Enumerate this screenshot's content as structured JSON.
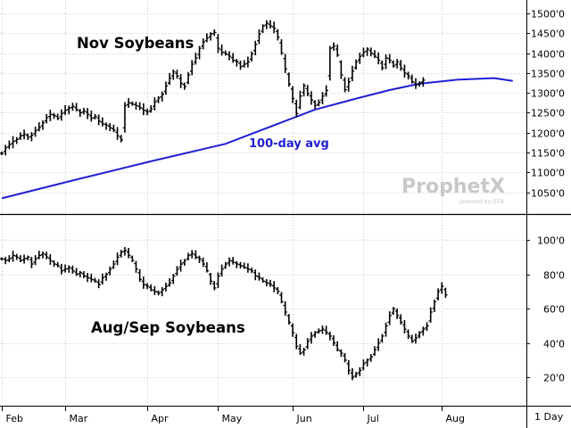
{
  "chart_data": [
    {
      "type": "ohlc",
      "title": "Nov Soybeans",
      "annotations": [
        "100-day avg"
      ],
      "watermark": {
        "main": "ProphetX",
        "sub": "powered by DTN"
      },
      "ylim": [
        1000,
        1520
      ],
      "y_ticks": [
        1050,
        1100,
        1150,
        1200,
        1250,
        1300,
        1350,
        1400,
        1450,
        1500
      ],
      "y_tick_labels": [
        "1050'0",
        "1100'0",
        "1150'0",
        "1200'0",
        "1250'0",
        "1300'0",
        "1350'0",
        "1400'0",
        "1450'0",
        "1500'0"
      ],
      "closes": [
        1148,
        1162,
        1170,
        1178,
        1183,
        1192,
        1196,
        1188,
        1194,
        1205,
        1213,
        1225,
        1238,
        1246,
        1243,
        1236,
        1248,
        1256,
        1262,
        1266,
        1258,
        1250,
        1255,
        1246,
        1236,
        1241,
        1229,
        1222,
        1219,
        1212,
        1206,
        1192,
        1182,
        1268,
        1275,
        1272,
        1268,
        1263,
        1256,
        1252,
        1260,
        1277,
        1287,
        1296,
        1318,
        1337,
        1353,
        1342,
        1324,
        1316,
        1345,
        1372,
        1388,
        1412,
        1428,
        1438,
        1448,
        1452,
        1412,
        1402,
        1398,
        1392,
        1382,
        1378,
        1366,
        1372,
        1378,
        1398,
        1422,
        1448,
        1468,
        1475,
        1468,
        1462,
        1440,
        1400,
        1360,
        1322,
        1286,
        1248,
        1292,
        1318,
        1298,
        1282,
        1268,
        1276,
        1292,
        1306,
        1412,
        1418,
        1395,
        1345,
        1308,
        1328,
        1355,
        1378,
        1392,
        1402,
        1410,
        1400,
        1392,
        1382,
        1363,
        1388,
        1382,
        1368,
        1378,
        1362,
        1350,
        1342,
        1328,
        1320,
        1325,
        1332
      ],
      "ma_series": {
        "name": "100-day avg",
        "color": "#1f1fd6",
        "points": [
          [
            0,
            1035
          ],
          [
            20,
            1082
          ],
          [
            40,
            1128
          ],
          [
            60,
            1172
          ],
          [
            72,
            1215
          ],
          [
            84,
            1258
          ],
          [
            96,
            1288
          ],
          [
            104,
            1307
          ],
          [
            112,
            1323
          ],
          [
            122,
            1333
          ],
          [
            132,
            1337
          ],
          [
            137,
            1330
          ]
        ]
      }
    },
    {
      "type": "ohlc",
      "title": "Aug/Sep Soybeans",
      "ylim": [
        5,
        112
      ],
      "y_ticks": [
        20,
        40,
        60,
        80,
        100
      ],
      "y_tick_labels": [
        "20'0",
        "40'0",
        "60'0",
        "80'0",
        "100'0"
      ],
      "closes": [
        89,
        88,
        89,
        91,
        90,
        88,
        89,
        90,
        86,
        89,
        91,
        92,
        90,
        88,
        86,
        85,
        82,
        83,
        84,
        82,
        80,
        81,
        79,
        78,
        77,
        76,
        74,
        78,
        80,
        83,
        86,
        90,
        93,
        94,
        91,
        88,
        83,
        77,
        74,
        73,
        71,
        70,
        69,
        71,
        73,
        75,
        79,
        83,
        86,
        88,
        91,
        92,
        90,
        89,
        86,
        82,
        76,
        72,
        79,
        83,
        86,
        88,
        87,
        86,
        85,
        84,
        83,
        82,
        79,
        78,
        76,
        75,
        74,
        72,
        70,
        64,
        58,
        52,
        46,
        38,
        34,
        36,
        41,
        44,
        46,
        47,
        48,
        46,
        44,
        40,
        36,
        34,
        30,
        24,
        20,
        22,
        24,
        28,
        30,
        32,
        36,
        40,
        44,
        50,
        56,
        60,
        56,
        52,
        48,
        44,
        41,
        43,
        46,
        48,
        50,
        58,
        64,
        70,
        73,
        68
      ],
      "session_windows": [
        [
          0,
          11
        ],
        [
          14,
          27
        ],
        [
          30,
          41
        ],
        [
          45,
          56
        ],
        [
          58,
          69
        ],
        [
          72,
          84
        ],
        [
          88,
          94
        ],
        [
          100,
          105
        ],
        [
          108,
          112
        ],
        [
          115,
          120
        ]
      ]
    }
  ],
  "x_axis": {
    "labels": [
      "Feb",
      "Mar",
      "Apr",
      "May",
      "Jun",
      "Jul",
      "Aug"
    ],
    "label_positions": [
      0,
      17,
      39,
      58,
      78,
      97,
      118
    ]
  },
  "corner_label": "1 Day"
}
